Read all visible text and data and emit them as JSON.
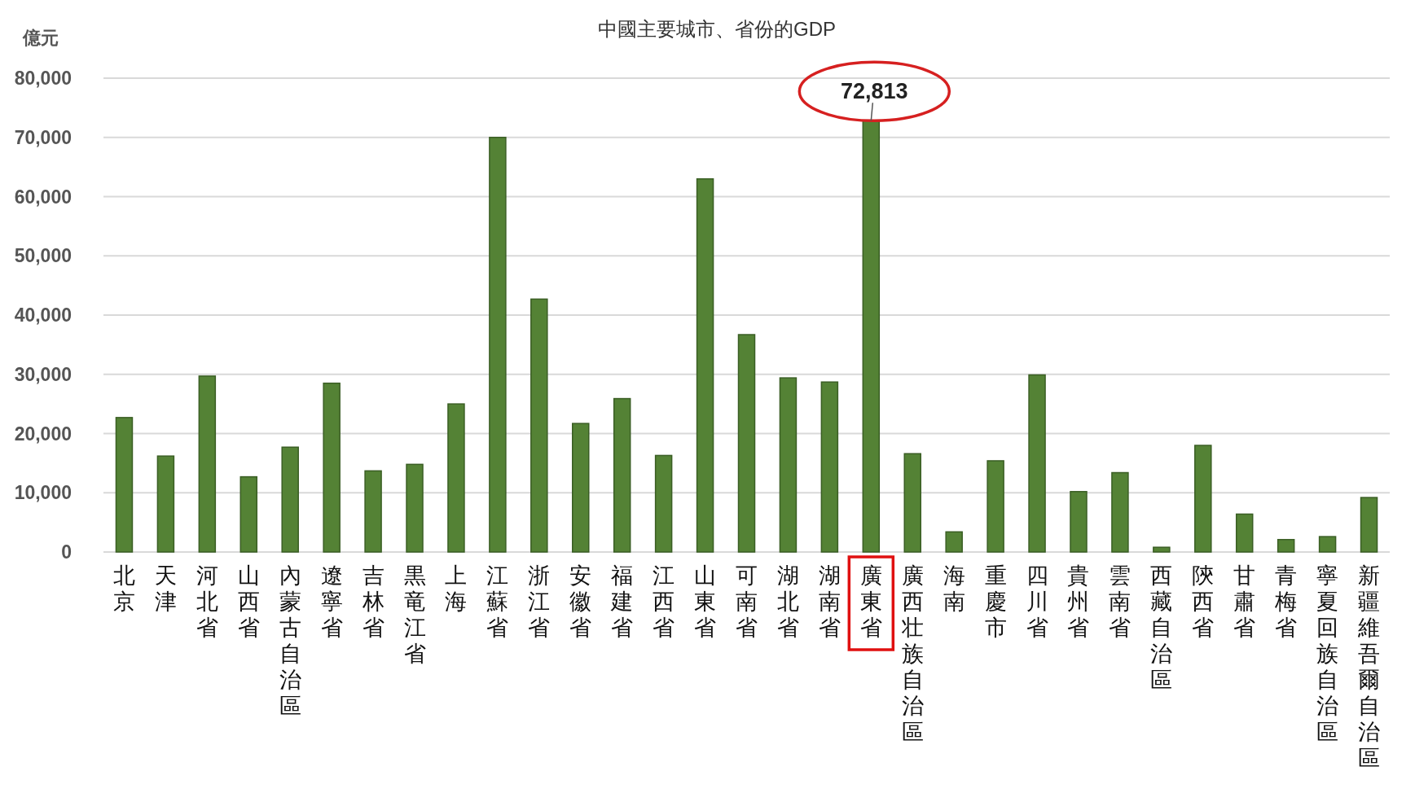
{
  "chart_data": {
    "type": "bar",
    "title": "中國主要城市、省份的GDP",
    "ylabel": "億元",
    "categories": [
      "北京",
      "天津",
      "河北省",
      "山西省",
      "內蒙古自治區",
      "遼寧省",
      "吉林省",
      "黒竜江省",
      "上海",
      "江蘇省",
      "浙江省",
      "安徽省",
      "福建省",
      "江西省",
      "山東省",
      "可南省",
      "湖北省",
      "湖南省",
      "廣東省",
      "廣西壮族自治區",
      "海南",
      "重慶市",
      "四川省",
      "貴州省",
      "雲南省",
      "西藏自治區",
      "陝西省",
      "甘肅省",
      "青梅省",
      "寧夏回族自治區",
      "新疆維吾爾自治區"
    ],
    "values": [
      22700,
      16200,
      29700,
      12700,
      17700,
      28500,
      13700,
      14800,
      25000,
      70000,
      42700,
      21700,
      25900,
      16300,
      63000,
      36700,
      29400,
      28700,
      72813,
      16600,
      3400,
      15400,
      29900,
      10200,
      13400,
      800,
      18000,
      6400,
      2100,
      2600,
      9200
    ],
    "color": "#548235",
    "ylim": [
      0,
      80000
    ],
    "yticks": [
      0,
      {
        "value": 10000,
        "label": "10,000"
      },
      {
        "value": 20000,
        "label": "20,000"
      },
      {
        "value": 30000,
        "label": "30,000"
      },
      {
        "value": 40000,
        "label": "40,000"
      },
      {
        "value": 50000,
        "label": "50,000"
      },
      {
        "value": 60000,
        "label": "60,000"
      },
      {
        "value": 70000,
        "label": "70,000"
      },
      {
        "value": 80000,
        "label": "80,000"
      }
    ],
    "grid": "y",
    "annotations": [
      {
        "text": "72,813",
        "x": "廣東省",
        "y": 72813
      }
    ]
  }
}
